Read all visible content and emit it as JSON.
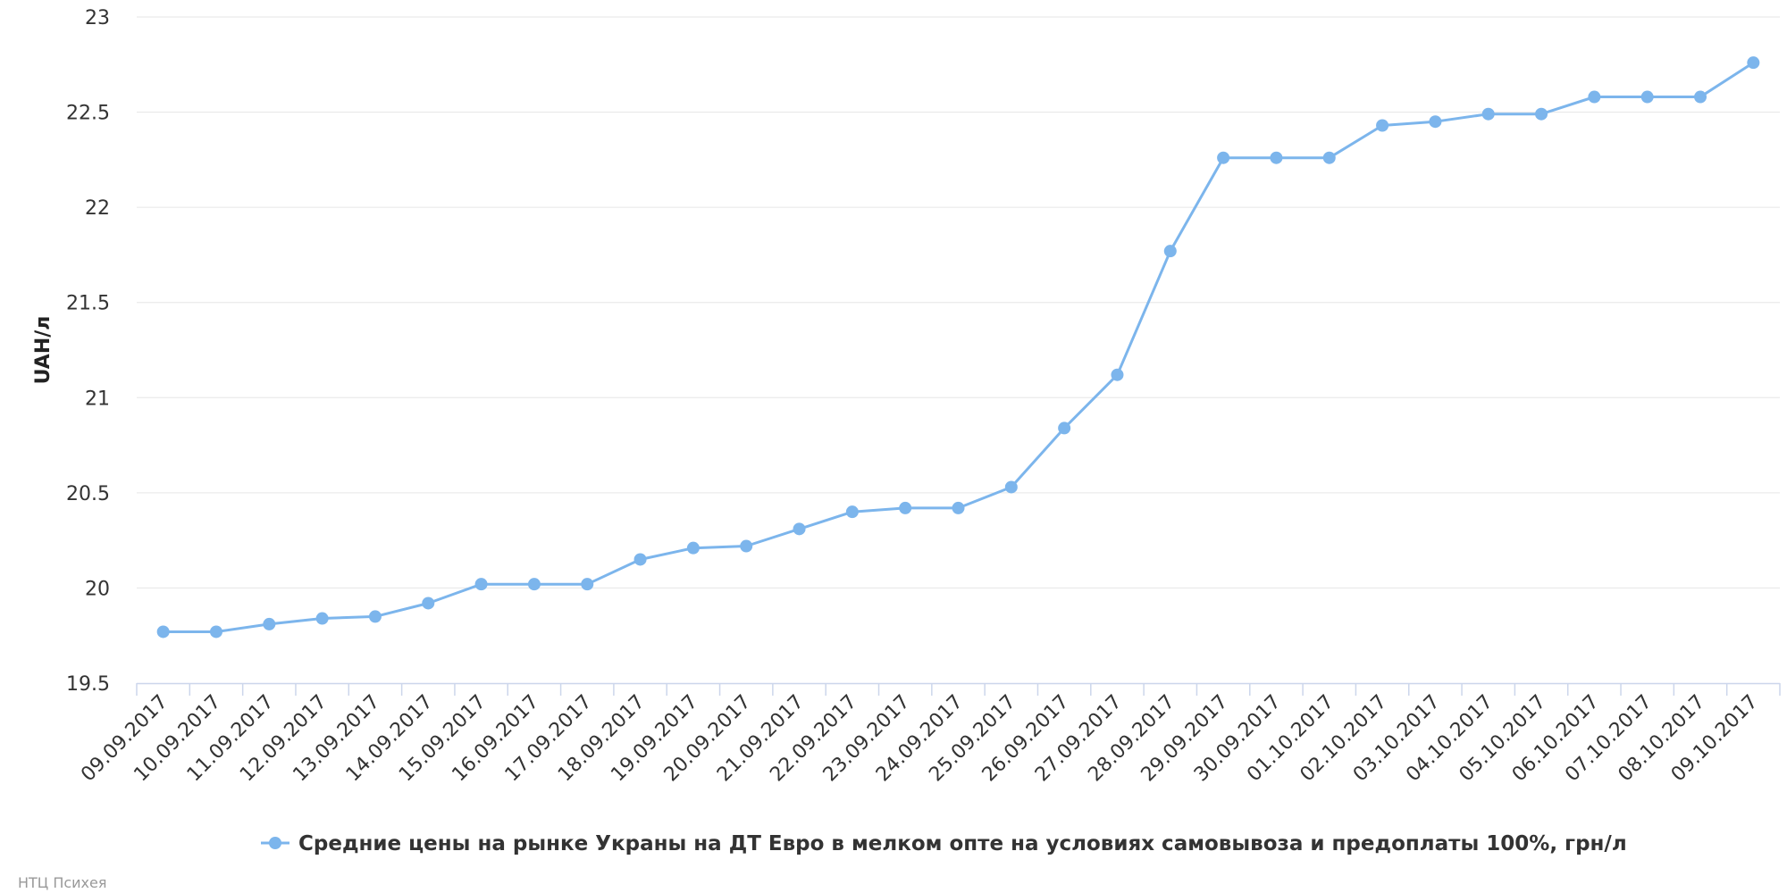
{
  "colors": {
    "series": "#7cb5ec",
    "grid": "#e6e6e6",
    "axis": "#ccd6eb"
  },
  "chart_data": {
    "type": "line",
    "ylabel": "UAH/л",
    "ylim": [
      19.5,
      23
    ],
    "yticks": [
      "19.5",
      "20",
      "20.5",
      "21",
      "21.5",
      "22",
      "22.5",
      "23"
    ],
    "grid": true,
    "legend_position": "bottom-center",
    "categories": [
      "09.09.2017",
      "10.09.2017",
      "11.09.2017",
      "12.09.2017",
      "13.09.2017",
      "14.09.2017",
      "15.09.2017",
      "16.09.2017",
      "17.09.2017",
      "18.09.2017",
      "19.09.2017",
      "20.09.2017",
      "21.09.2017",
      "22.09.2017",
      "23.09.2017",
      "24.09.2017",
      "25.09.2017",
      "26.09.2017",
      "27.09.2017",
      "28.09.2017",
      "29.09.2017",
      "30.09.2017",
      "01.10.2017",
      "02.10.2017",
      "03.10.2017",
      "04.10.2017",
      "05.10.2017",
      "06.10.2017",
      "07.10.2017",
      "08.10.2017",
      "09.10.2017"
    ],
    "series": [
      {
        "name": "Средние цены на рынке Украны на ДТ Евро в мелком опте на условиях самовывоза и предоплаты 100%, грн/л",
        "values": [
          19.77,
          19.77,
          19.81,
          19.84,
          19.85,
          19.92,
          20.02,
          20.02,
          20.02,
          20.15,
          20.21,
          20.22,
          20.31,
          20.4,
          20.42,
          20.42,
          20.53,
          20.84,
          21.12,
          21.77,
          22.26,
          22.26,
          22.26,
          22.43,
          22.45,
          22.49,
          22.49,
          22.58,
          22.58,
          22.58,
          22.76
        ]
      }
    ]
  },
  "credit": "НТЦ Психея"
}
